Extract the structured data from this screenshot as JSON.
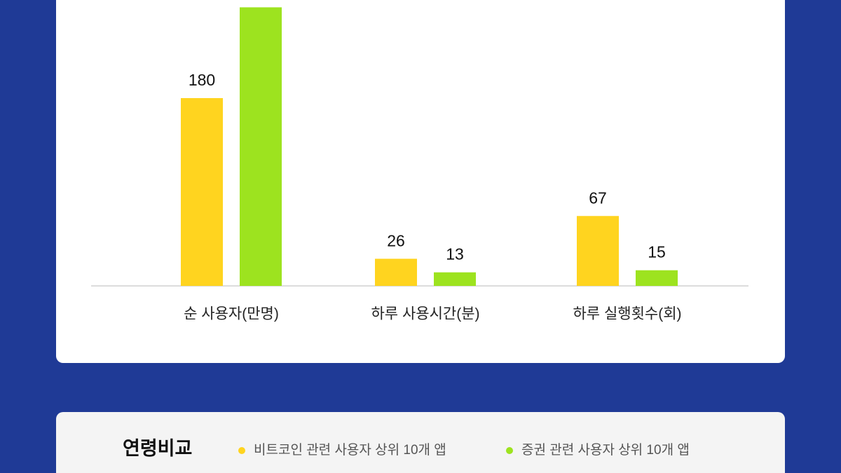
{
  "chart_data": {
    "type": "bar",
    "categories": [
      "순 사용자(만명)",
      "하루 사용시간(분)",
      "하루 실행횟수(회)"
    ],
    "series": [
      {
        "name": "비트코인 관련 사용자 상위 10개 앱",
        "color": "#ffd41f",
        "values": [
          180,
          26,
          67
        ]
      },
      {
        "name": "증권 관련 사용자 상위 10개 앱",
        "color": "#9de31f",
        "values": [
          267,
          13,
          15
        ]
      }
    ],
    "legend_title": "연령비교"
  }
}
